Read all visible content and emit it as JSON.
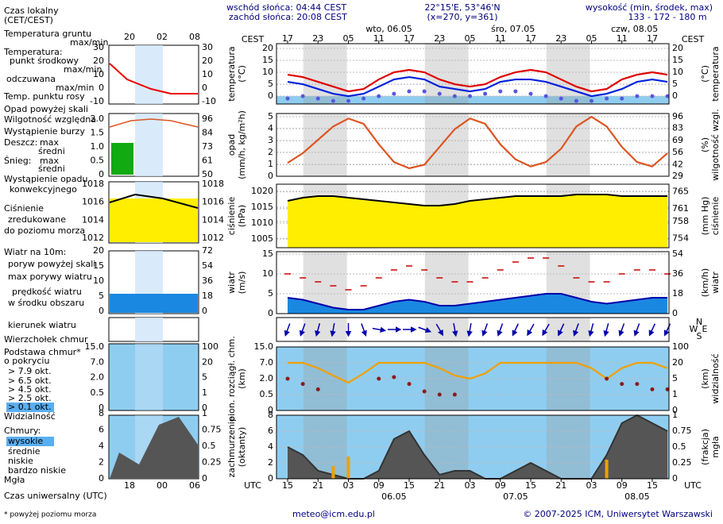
{
  "header": {
    "sunrise": "wschód słońca: 04:44 CEST",
    "sunset": "zachód słońca: 20:08 CEST",
    "coords": "22°15'E, 53°46'N",
    "grid": "(x=270, y=361)",
    "elevation_title": "wysokość (min, środek, max)",
    "elevation": "133 - 172 - 180 m"
  },
  "footer": {
    "note": "* powyżej poziomu morza",
    "email": "meteo@icm.edu.pl",
    "copyright": "© 2007-2025 ICM, Uniwersytet Warszawski"
  },
  "time_axis": {
    "xlim": [
      -2.2,
      75.3
    ],
    "label_top": "CEST",
    "label_top_right": "CEST",
    "label_bottom": "UTC",
    "label_bottom_right": "UTC",
    "xticks_utc": [
      {
        "value": 0,
        "label": "15"
      },
      {
        "value": 6,
        "label": "21"
      },
      {
        "value": 12,
        "label": "03"
      },
      {
        "value": 18,
        "label": "09"
      },
      {
        "value": 24,
        "label": "15"
      },
      {
        "value": 30,
        "label": "21"
      },
      {
        "value": 36,
        "label": "03"
      },
      {
        "value": 42,
        "label": "09"
      },
      {
        "value": 48,
        "label": "15"
      },
      {
        "value": 54,
        "label": "21"
      },
      {
        "value": 60,
        "label": "03"
      },
      {
        "value": 66,
        "label": "09"
      },
      {
        "value": 72,
        "label": "15"
      }
    ],
    "xticks_cest": [
      {
        "value": 0,
        "label": "17"
      },
      {
        "value": 6,
        "label": "23"
      },
      {
        "value": 12,
        "label": "05"
      },
      {
        "value": 18,
        "label": "11"
      },
      {
        "value": 24,
        "label": "17"
      },
      {
        "value": 30,
        "label": "23"
      },
      {
        "value": 36,
        "label": "05"
      },
      {
        "value": 42,
        "label": "11"
      },
      {
        "value": 48,
        "label": "17"
      },
      {
        "value": 54,
        "label": "23"
      },
      {
        "value": 60,
        "label": "05"
      },
      {
        "value": 66,
        "label": "11"
      },
      {
        "value": 72,
        "label": "17"
      }
    ],
    "dates_top": [
      "wto, 06.05",
      "śro, 07.05",
      "czw, 08.05"
    ],
    "dates_bottom": [
      "06.05",
      "07.05",
      "08.05"
    ]
  },
  "left_panel": {
    "labels": [
      "Czas lokalny",
      "(CET/CEST)",
      "Temperatura gruntu",
      "max/min",
      "Temperatura:",
      "punkt środkowy",
      "max/min",
      "odczuwana",
      "max/min",
      "Temp. punktu rosy",
      "Opad powyżej skali",
      "Wilgotność względna",
      "Wystąpienie burzy",
      "Deszcz:",
      "max",
      "średni",
      "Śnieg:",
      "max",
      "średni",
      "Wystąpienie opadu",
      "konwekcyjnego",
      "Ciśnienie",
      "zredukowane",
      "do poziomu morza",
      "Wiatr na 10m:",
      "poryw powyżej skali",
      "max porywy wiatru",
      "prędkość wiatru",
      "w środku obszaru",
      "kierunek wiatru",
      "Wierzchołek chmur",
      "Podstawa chmur*",
      "o pokryciu",
      "> 7.9 okt.",
      "> 6.5 okt.",
      "> 4.5 okt.",
      "> 2.5 okt.",
      "> 0.1 okt.",
      "Widzialność",
      "Chmury:",
      "wysokie",
      "średnie",
      "niskie",
      "bardzo niskie",
      "Mgła",
      "Czas uniwersalny (UTC)"
    ],
    "hours_top": [
      "20",
      "02",
      "08"
    ],
    "hours_bottom": [
      "18",
      "00",
      "06"
    ],
    "ticks": {
      "temp_left": [
        30,
        20,
        10,
        0,
        -10
      ],
      "temp_right": [
        30,
        20,
        10,
        0,
        -10
      ],
      "precip_left": [
        "2.0",
        "1.5",
        "1.0",
        "0.5",
        0
      ],
      "precip_right": [
        96,
        84,
        73,
        61,
        50
      ],
      "pressure_left": [
        1018,
        1016,
        1014,
        1012
      ],
      "pressure_right": [
        1018,
        1016,
        1014,
        1012
      ],
      "wind_left": [
        20,
        15,
        10,
        5,
        0
      ],
      "wind_right": [
        72,
        54,
        36,
        18,
        0
      ],
      "cloud_left": [
        "15.0",
        "7.0",
        "2.0",
        "0.5",
        0
      ],
      "cloud_right": [
        100,
        20,
        5,
        1,
        0
      ],
      "fog_left": [
        8,
        6,
        4,
        2,
        0
      ],
      "fog_right": [
        1,
        0.75,
        0.5,
        0.25,
        0
      ]
    }
  },
  "chart_data": [
    {
      "type": "line",
      "ylabel": [
        "temperatura",
        "(°C)"
      ],
      "y2label": [
        "(°C)",
        "temperatura"
      ],
      "x": [
        0,
        3,
        6,
        9,
        12,
        15,
        18,
        21,
        24,
        27,
        30,
        33,
        36,
        39,
        42,
        45,
        48,
        51,
        54,
        57,
        60,
        63,
        66,
        69,
        72,
        75
      ],
      "ylim": [
        -3.3,
        22
      ],
      "yticks": [
        0,
        5,
        10,
        15,
        20
      ],
      "y2ticks": [
        0,
        5,
        10,
        15,
        20
      ],
      "grid": true,
      "series": [
        {
          "style": "dots",
          "color": "#5555dd",
          "values": [
            -1,
            0,
            -1,
            -2,
            -2,
            -1,
            0,
            1,
            2,
            2,
            1,
            0,
            0,
            1,
            2,
            2,
            1,
            0,
            -1,
            -2,
            -2,
            -1,
            -1,
            0,
            0,
            0
          ]
        },
        {
          "style": "line",
          "color": "#0022dd",
          "values": [
            6,
            5,
            3,
            1,
            0,
            1,
            4,
            7,
            8,
            7,
            4,
            3,
            2,
            3,
            6,
            7,
            7,
            6,
            4,
            2,
            0,
            1,
            3,
            6,
            7,
            6
          ]
        },
        {
          "style": "line",
          "color": "#e00000",
          "values": [
            9,
            8,
            6,
            4,
            2,
            3,
            7,
            10,
            11,
            10,
            7,
            5,
            4,
            5,
            8,
            10,
            11,
            10,
            7,
            4,
            2,
            3,
            7,
            9,
            10,
            9
          ]
        }
      ]
    },
    {
      "type": "line",
      "ylabel": [
        "opad",
        "(mm/h, kg/m²h)"
      ],
      "y2label": [
        "(%)",
        "wilgotność wzgl."
      ],
      "x": [
        0,
        3,
        6,
        9,
        12,
        15,
        18,
        21,
        24,
        27,
        30,
        33,
        36,
        39,
        42,
        45,
        48,
        51,
        54,
        57,
        60,
        63,
        66,
        69,
        72,
        75
      ],
      "ylim": [
        0,
        5.27
      ],
      "yticks": [
        0,
        1,
        2,
        3,
        4,
        5
      ],
      "y2lim": [
        29,
        99.6
      ],
      "y2ticks": [
        29,
        42,
        56,
        69,
        83,
        96
      ],
      "grid": true,
      "series": [
        {
          "style": "line",
          "axis": "y2",
          "color": "#dd5522",
          "values": [
            44,
            55,
            70,
            85,
            94,
            88,
            65,
            45,
            38,
            42,
            62,
            82,
            94,
            88,
            65,
            48,
            40,
            45,
            60,
            85,
            96,
            85,
            62,
            45,
            40,
            55
          ]
        }
      ]
    },
    {
      "type": "line",
      "ylabel": [
        "ciśnienie",
        "(hPa)"
      ],
      "y2label": [
        "(mm Hg)",
        "ciśnienie"
      ],
      "x": [
        0,
        3,
        6,
        9,
        12,
        15,
        18,
        21,
        24,
        27,
        30,
        33,
        36,
        39,
        42,
        45,
        48,
        51,
        54,
        57,
        60,
        63,
        66,
        69,
        72,
        75
      ],
      "ylim": [
        1002.25,
        1022.25
      ],
      "yticks": [
        1005,
        1010,
        1015,
        1020
      ],
      "y2lim": [
        751.8,
        766.8
      ],
      "y2ticks": [
        754,
        758,
        761,
        765
      ],
      "grid": true,
      "series": [
        {
          "style": "area",
          "color": "#ffee00",
          "edge": "#000000",
          "values": [
            1017,
            1018,
            1018.5,
            1018.5,
            1018,
            1017.5,
            1017,
            1016.5,
            1016,
            1015.5,
            1015.5,
            1016,
            1017,
            1017.5,
            1018,
            1018.5,
            1018.5,
            1018.5,
            1018.5,
            1019,
            1019,
            1019,
            1018.5,
            1018.5,
            1018.5,
            1018.5
          ]
        }
      ]
    },
    {
      "type": "line",
      "ylabel": [
        "wiatr",
        "(m/s)"
      ],
      "y2label": [
        "(km/h)",
        "wiatr"
      ],
      "x": [
        0,
        3,
        6,
        9,
        12,
        15,
        18,
        21,
        24,
        27,
        30,
        33,
        36,
        39,
        42,
        45,
        48,
        51,
        54,
        57,
        60,
        63,
        66,
        69,
        72,
        75
      ],
      "ylim": [
        0,
        15.6
      ],
      "yticks": [
        0,
        5,
        10,
        15
      ],
      "y2lim": [
        0,
        56.2
      ],
      "y2ticks": [
        0,
        18,
        36,
        54
      ],
      "grid": true,
      "series": [
        {
          "style": "area",
          "color": "#1a88e0",
          "edge": "#0000aa",
          "values": [
            4,
            3.5,
            2.5,
            1.5,
            1,
            1,
            2,
            3,
            3.5,
            3,
            2,
            2,
            2.5,
            3,
            3.5,
            4,
            4.5,
            5,
            5,
            4,
            3,
            2.5,
            3,
            3.5,
            4,
            4
          ]
        },
        {
          "style": "dash",
          "color": "#cc0000",
          "values": [
            10,
            9,
            8,
            7,
            6,
            7,
            9,
            11,
            12,
            11,
            9,
            8,
            8,
            9,
            11,
            13,
            14,
            14,
            12,
            9,
            8,
            8,
            10,
            11,
            11,
            10
          ]
        }
      ]
    },
    {
      "type": "arrow",
      "compass": [
        "N",
        "W",
        "E",
        "S"
      ],
      "x": [
        0,
        3,
        6,
        9,
        12,
        15,
        18,
        21,
        24,
        27,
        30,
        33,
        36,
        39,
        42,
        45,
        48,
        51,
        54,
        57,
        60,
        63,
        66,
        69,
        72,
        75
      ],
      "color": "#0000aa",
      "values": [
        20,
        20,
        15,
        10,
        0,
        340,
        280,
        270,
        270,
        290,
        330,
        350,
        10,
        20,
        20,
        25,
        30,
        30,
        25,
        20,
        15,
        15,
        20,
        20,
        25,
        25
      ]
    },
    {
      "type": "line",
      "ylabel": [
        "pion. rozciągł. chm.",
        "(km)"
      ],
      "y2label": [
        "(km)",
        "widzialność"
      ],
      "x": [
        0,
        3,
        6,
        9,
        12,
        15,
        18,
        21,
        24,
        27,
        30,
        33,
        36,
        39,
        42,
        45,
        48,
        51,
        54,
        57,
        60,
        63,
        66,
        69,
        72,
        75
      ],
      "ylim": [
        0,
        15
      ],
      "yscale": "piecewise",
      "yticks": [
        0,
        0.5,
        {
          "value": 2,
          "label": "2.0"
        },
        {
          "value": 7,
          "label": "7.0"
        },
        {
          "value": 15,
          "label": "15.0"
        }
      ],
      "y2lim": [
        0,
        100
      ],
      "y2scale": "piecewise",
      "y2ticks": [
        0,
        1,
        5,
        20,
        100
      ],
      "grid": true,
      "series": [
        {
          "style": "line",
          "axis": "y2",
          "color": "#f0a000",
          "values": [
            20,
            20,
            15,
            8,
            4,
            10,
            20,
            20,
            20,
            20,
            15,
            8,
            5,
            10,
            20,
            20,
            20,
            20,
            20,
            20,
            15,
            5,
            15,
            20,
            20,
            15
          ]
        },
        {
          "style": "dots",
          "color": "#8b1a1a",
          "values": [
            2,
            1.5,
            1,
            null,
            null,
            null,
            2,
            2.5,
            1.5,
            0.8,
            0.5,
            0.5,
            null,
            null,
            null,
            null,
            null,
            null,
            null,
            null,
            null,
            2,
            1.5,
            1.5,
            1,
            1
          ]
        }
      ]
    },
    {
      "type": "line",
      "ylabel": [
        "zachmurzenie",
        "(oktanty)"
      ],
      "y2label": [
        "(frakcja)",
        "mgła"
      ],
      "x": [
        0,
        3,
        6,
        9,
        12,
        15,
        18,
        21,
        24,
        27,
        30,
        33,
        36,
        39,
        42,
        45,
        48,
        51,
        54,
        57,
        60,
        63,
        66,
        69,
        72,
        75
      ],
      "ylim": [
        0,
        8
      ],
      "yticks": [
        0,
        2,
        4,
        6,
        8
      ],
      "y2lim": [
        0,
        1
      ],
      "y2ticks": [
        0,
        0.25,
        0.5,
        0.75,
        1
      ],
      "grid": true,
      "series": [
        {
          "style": "area",
          "color": "#555555",
          "edge": "#333333",
          "values": [
            4,
            3,
            1,
            0.5,
            0,
            0,
            1,
            5,
            6,
            3,
            0.5,
            1,
            1,
            0,
            0,
            1,
            2,
            1,
            0,
            0,
            0,
            3,
            7,
            8,
            7,
            6
          ]
        },
        {
          "style": "bar",
          "axis": "y2",
          "color": "#f0a000",
          "values": [
            0,
            0,
            0,
            0.2,
            0.35,
            0,
            0,
            0,
            0,
            0,
            0,
            0,
            0,
            0,
            0,
            0,
            0,
            0,
            0,
            0,
            0,
            0.3,
            0,
            0,
            0,
            0
          ]
        }
      ]
    }
  ]
}
